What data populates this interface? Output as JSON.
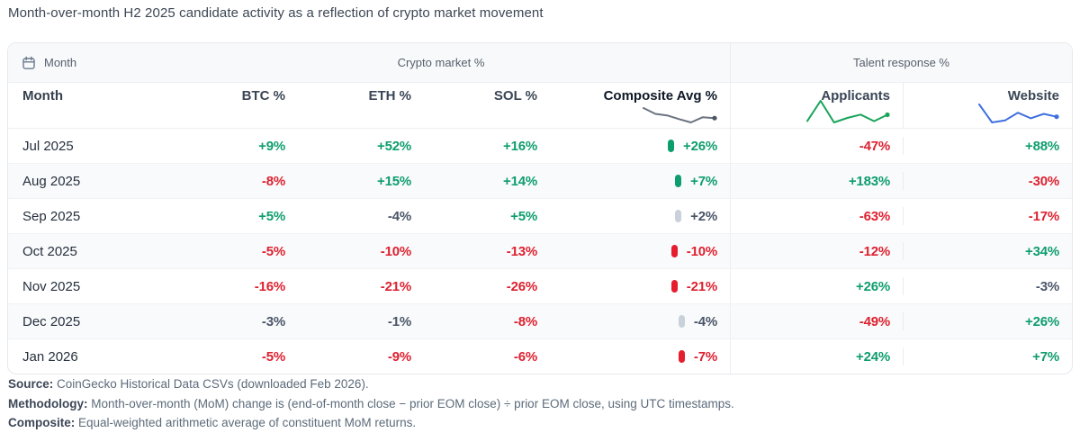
{
  "title": "Month-over-month H2 2025 candidate activity as a reflection of crypto market movement",
  "table": {
    "groups": {
      "month_label": "Month",
      "crypto_label": "Crypto market %",
      "talent_label": "Talent response %"
    },
    "columns": {
      "month": "Month",
      "btc": "BTC %",
      "eth": "ETH %",
      "sol": "SOL %",
      "composite": "Composite Avg %",
      "applicants": "Applicants",
      "website": "Website"
    },
    "rows": [
      {
        "month": "Jul 2025",
        "btc": "+9%",
        "btc_tone": "pos",
        "eth": "+52%",
        "eth_tone": "pos",
        "sol": "+16%",
        "sol_tone": "pos",
        "composite": "+26%",
        "composite_tone": "pos",
        "applicants": "-47%",
        "applicants_tone": "neg",
        "website": "+88%",
        "website_tone": "pos"
      },
      {
        "month": "Aug 2025",
        "btc": "-8%",
        "btc_tone": "neg",
        "eth": "+15%",
        "eth_tone": "pos",
        "sol": "+14%",
        "sol_tone": "pos",
        "composite": "+7%",
        "composite_tone": "pos",
        "applicants": "+183%",
        "applicants_tone": "pos",
        "website": "-30%",
        "website_tone": "neg"
      },
      {
        "month": "Sep 2025",
        "btc": "+5%",
        "btc_tone": "pos",
        "eth": "-4%",
        "eth_tone": "neu",
        "sol": "+5%",
        "sol_tone": "pos",
        "composite": "+2%",
        "composite_tone": "neu",
        "applicants": "-63%",
        "applicants_tone": "neg",
        "website": "-17%",
        "website_tone": "neg"
      },
      {
        "month": "Oct 2025",
        "btc": "-5%",
        "btc_tone": "neg",
        "eth": "-10%",
        "eth_tone": "neg",
        "sol": "-13%",
        "sol_tone": "neg",
        "composite": "-10%",
        "composite_tone": "neg",
        "applicants": "-12%",
        "applicants_tone": "neg",
        "website": "+34%",
        "website_tone": "pos"
      },
      {
        "month": "Nov 2025",
        "btc": "-16%",
        "btc_tone": "neg",
        "eth": "-21%",
        "eth_tone": "neg",
        "sol": "-26%",
        "sol_tone": "neg",
        "composite": "-21%",
        "composite_tone": "neg",
        "applicants": "+26%",
        "applicants_tone": "pos",
        "website": "-3%",
        "website_tone": "neu"
      },
      {
        "month": "Dec 2025",
        "btc": "-3%",
        "btc_tone": "neu",
        "eth": "-1%",
        "eth_tone": "neu",
        "sol": "-8%",
        "sol_tone": "neg",
        "composite": "-4%",
        "composite_tone": "neu",
        "applicants": "-49%",
        "applicants_tone": "neg",
        "website": "+26%",
        "website_tone": "pos"
      },
      {
        "month": "Jan 2026",
        "btc": "-5%",
        "btc_tone": "neg",
        "eth": "-9%",
        "eth_tone": "neg",
        "sol": "-6%",
        "sol_tone": "neg",
        "composite": "-7%",
        "composite_tone": "neg",
        "applicants": "+24%",
        "applicants_tone": "pos",
        "website": "+7%",
        "website_tone": "pos"
      }
    ]
  },
  "sparklines": {
    "composite": {
      "color": "#6b7280",
      "dot": "#4b5563",
      "values": [
        26,
        7,
        2,
        -10,
        -21,
        -4,
        -7
      ]
    },
    "applicants": {
      "color": "#18a45a",
      "values": [
        -47,
        183,
        -63,
        -12,
        26,
        -49,
        24
      ]
    },
    "website": {
      "color": "#3e6fe0",
      "values": [
        88,
        -30,
        -17,
        34,
        -3,
        26,
        7
      ]
    }
  },
  "chart_data": {
    "type": "table",
    "title": "Month-over-month H2 2025 candidate activity as a reflection of crypto market movement",
    "columns": [
      "Month",
      "BTC %",
      "ETH %",
      "SOL %",
      "Composite Avg %",
      "Applicants",
      "Website"
    ],
    "rows": [
      [
        "Jul 2025",
        9,
        52,
        16,
        26,
        -47,
        88
      ],
      [
        "Aug 2025",
        -8,
        15,
        14,
        7,
        183,
        -30
      ],
      [
        "Sep 2025",
        5,
        -4,
        5,
        2,
        -63,
        -17
      ],
      [
        "Oct 2025",
        -5,
        -10,
        -13,
        -10,
        -12,
        34
      ],
      [
        "Nov 2025",
        -16,
        -21,
        -26,
        -21,
        26,
        -3
      ],
      [
        "Dec 2025",
        -3,
        -1,
        -8,
        -4,
        -49,
        26
      ],
      [
        "Jan 2026",
        -5,
        -9,
        -6,
        -7,
        24,
        7
      ]
    ],
    "column_groups": [
      "Month",
      "Crypto market %",
      "Talent response %"
    ],
    "units": "percent MoM change",
    "sparkline_series": [
      {
        "name": "Composite Avg %",
        "values": [
          26,
          7,
          2,
          -10,
          -21,
          -4,
          -7
        ],
        "color": "#6b7280"
      },
      {
        "name": "Applicants",
        "values": [
          -47,
          183,
          -63,
          -12,
          26,
          -49,
          24
        ],
        "color": "#18a45a"
      },
      {
        "name": "Website",
        "values": [
          88,
          -30,
          -17,
          34,
          -3,
          26,
          7
        ],
        "color": "#3e6fe0"
      }
    ]
  },
  "footer": {
    "source_label": "Source:",
    "source_text": " CoinGecko Historical Data CSVs (downloaded Feb 2026).",
    "methodology_label": "Methodology:",
    "methodology_text": " Month-over-month (MoM) change is (end-of-month close − prior EOM close) ÷ prior EOM close, using UTC timestamps.",
    "composite_label": "Composite:",
    "composite_text": " Equal-weighted arithmetic average of constituent MoM returns."
  }
}
